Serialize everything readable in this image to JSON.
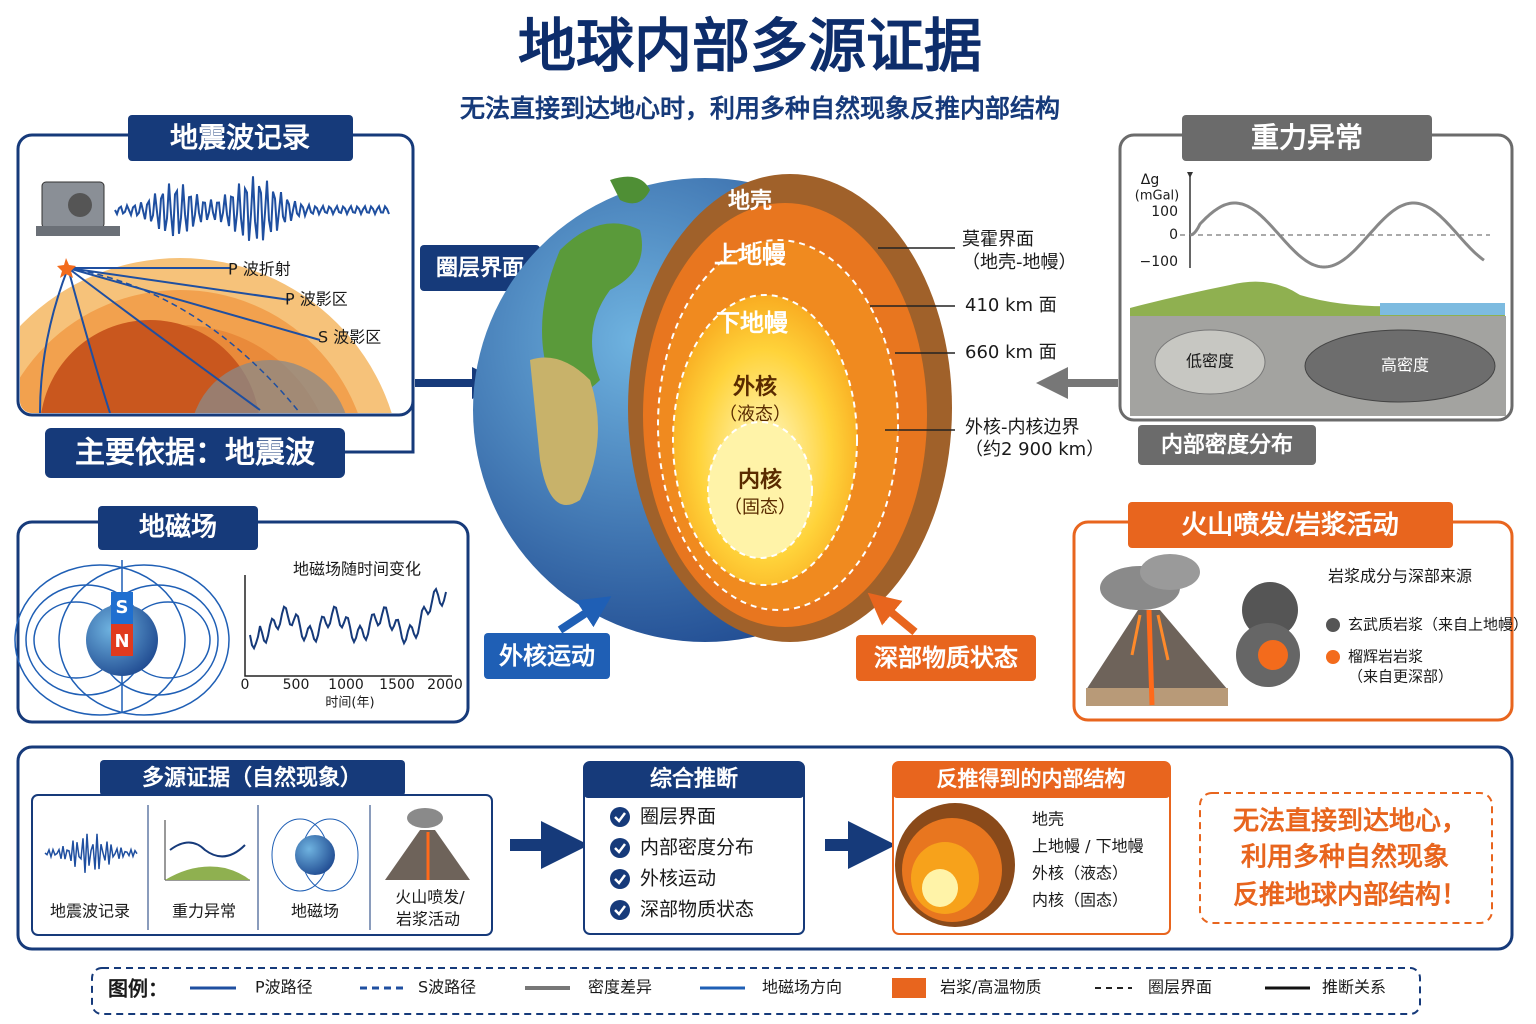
{
  "header": {
    "title": "地球内部多源证据",
    "subtitle": "无法直接到达地心时，利用多种自然现象反推内部结构"
  },
  "seismic": {
    "title": "地震波记录",
    "labels": [
      "P 波折射",
      "P 波影区",
      "S 波影区"
    ],
    "tag": "圈层界面",
    "footer": "主要依据：地震波"
  },
  "gravity": {
    "title": "重力异常",
    "y_label": [
      "Δg",
      "(mGal)"
    ],
    "yticks": [
      "100",
      "0",
      "−100"
    ],
    "regions": [
      "低密度",
      "高密度"
    ],
    "tag": "内部密度分布"
  },
  "magnetic": {
    "title": "地磁场",
    "poles": [
      "S",
      "N"
    ],
    "chart_title": "地磁场随时间变化",
    "xticks": [
      "0",
      "500",
      "1000",
      "1500",
      "2000"
    ],
    "x_label": "时间(年)",
    "tag": "外核运动"
  },
  "volcano": {
    "title": "火山喷发/岩浆活动",
    "subtitle": "岩浆成分与深部来源",
    "items": [
      [
        "玄武质岩浆（来自上地幔）"
      ],
      [
        "榴辉岩岩浆",
        "（来自更深部）"
      ]
    ],
    "tag": "深部物质状态"
  },
  "earth": {
    "layers": [
      [
        "地壳"
      ],
      [
        "上地幔"
      ],
      [
        "下地幔"
      ],
      [
        "外核",
        "（液态）"
      ],
      [
        "内核",
        "（固态）"
      ]
    ],
    "boundaries": [
      [
        "莫霍界面",
        "（地壳-地幔）"
      ],
      [
        "410 km 面"
      ],
      [
        "660 km 面"
      ],
      [
        "外核-内核边界",
        "（约2 900 km）"
      ]
    ]
  },
  "evidence": {
    "title": "多源证据（自然现象）",
    "items": [
      [
        "地震波记录"
      ],
      [
        "重力异常"
      ],
      [
        "地磁场"
      ],
      [
        "火山喷发/",
        "岩浆活动"
      ]
    ]
  },
  "inference": {
    "title": "综合推断",
    "items": [
      "圈层界面",
      "内部密度分布",
      "外核运动",
      "深部物质状态"
    ]
  },
  "result": {
    "title": "反推得到的内部结构",
    "items": [
      "地壳",
      "上地幔 / 下地幔",
      "外核（液态）",
      "内核（固态）"
    ]
  },
  "note": [
    "无法直接到达地心，",
    "利用多种自然现象",
    "反推地球内部结构！"
  ],
  "legend": {
    "title": "图例：",
    "items": [
      "P波路径",
      "S波路径",
      "密度差异",
      "地磁场方向",
      "岩浆/高温物质",
      "圈层界面",
      "推断关系"
    ]
  }
}
